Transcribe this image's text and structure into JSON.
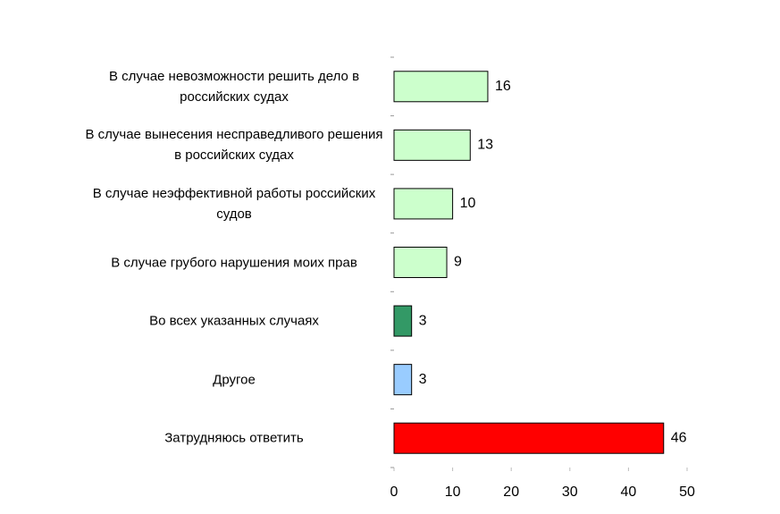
{
  "chart_data": {
    "type": "bar",
    "orientation": "horizontal",
    "categories": [
      "В случае невозможности решить дело в российских судах",
      "В случае вынесения несправедливого решения в российских судах",
      "В случае неэффективной работы российских судов",
      "В случае грубого нарушения моих прав",
      "Во всех указанных случаях",
      "Другое",
      "Затрудняюсь ответить"
    ],
    "values": [
      16,
      13,
      10,
      9,
      3,
      3,
      46
    ],
    "colors": [
      "#ccffcc",
      "#ccffcc",
      "#ccffcc",
      "#ccffcc",
      "#339966",
      "#99ccff",
      "#ff0000"
    ],
    "xlim": [
      0,
      50
    ],
    "xticks": [
      0,
      10,
      20,
      30,
      40,
      50
    ]
  }
}
